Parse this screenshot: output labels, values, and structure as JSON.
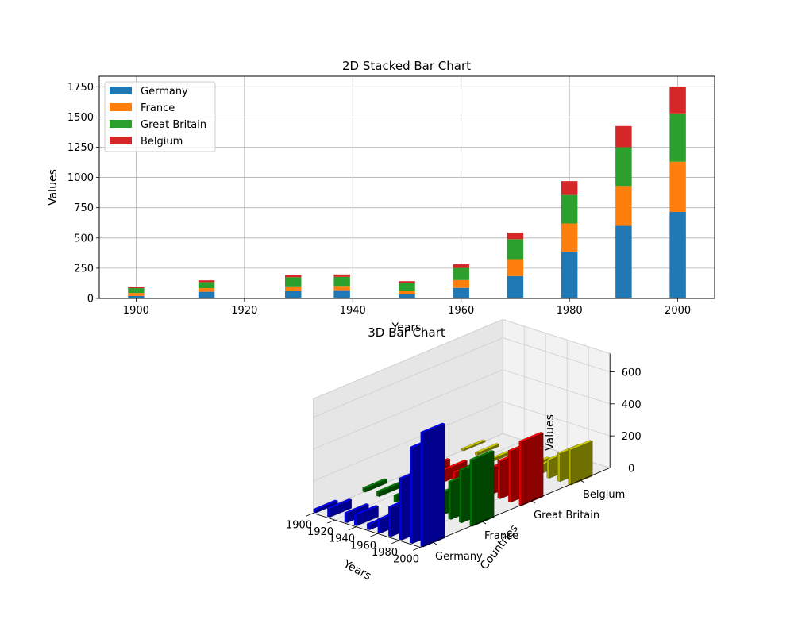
{
  "chart_data": [
    {
      "type": "bar",
      "stacked": true,
      "title": "2D Stacked Bar Chart",
      "xlabel": "Years",
      "ylabel": "Values",
      "x": [
        1900,
        1913,
        1929,
        1938,
        1950,
        1960,
        1970,
        1980,
        1990,
        2000
      ],
      "xlim": [
        1893.2,
        2006.8
      ],
      "ylim": [
        0,
        1837
      ],
      "xticks": [
        1900,
        1920,
        1940,
        1960,
        1980,
        2000
      ],
      "yticks": [
        0,
        250,
        500,
        750,
        1000,
        1250,
        1500,
        1750
      ],
      "grid": true,
      "legend_position": "upper-left",
      "series": [
        {
          "name": "Germany",
          "color": "#1f77b4",
          "values": [
            20,
            55,
            60,
            68,
            35,
            87,
            185,
            385,
            600,
            715
          ]
        },
        {
          "name": "France",
          "color": "#ff7f0e",
          "values": [
            25,
            30,
            40,
            35,
            30,
            65,
            140,
            235,
            330,
            415
          ]
        },
        {
          "name": "Great Britain",
          "color": "#2ca02c",
          "values": [
            40,
            50,
            75,
            75,
            60,
            100,
            165,
            235,
            320,
            400
          ]
        },
        {
          "name": "Belgium",
          "color": "#d62728",
          "values": [
            10,
            15,
            18,
            20,
            18,
            30,
            55,
            115,
            175,
            220
          ]
        }
      ]
    },
    {
      "type": "bar3d",
      "title": "3D Bar Chart",
      "xlabel": "Years",
      "ylabel": "Countries",
      "zlabel": "Values",
      "xticks": [
        1900,
        1920,
        1940,
        1960,
        1980,
        2000
      ],
      "yticks": [
        "Germany",
        "France",
        "Great Britain",
        "Belgium"
      ],
      "zticks": [
        0,
        200,
        400,
        600
      ],
      "zlim": [
        0,
        715
      ],
      "x": [
        1900,
        1913,
        1929,
        1938,
        1950,
        1960,
        1970,
        1980,
        1990,
        2000
      ],
      "series": [
        {
          "name": "Germany",
          "color": "#0000ff",
          "values": [
            20,
            55,
            60,
            68,
            35,
            87,
            185,
            385,
            600,
            715
          ]
        },
        {
          "name": "France",
          "color": "#008000",
          "values": [
            25,
            30,
            40,
            35,
            30,
            65,
            140,
            235,
            330,
            415
          ]
        },
        {
          "name": "Great Britain",
          "color": "#ff0000",
          "values": [
            40,
            50,
            75,
            75,
            60,
            100,
            165,
            235,
            320,
            400
          ]
        },
        {
          "name": "Belgium",
          "color": "#cccc00",
          "values": [
            10,
            15,
            18,
            20,
            18,
            30,
            55,
            115,
            175,
            220
          ]
        }
      ]
    }
  ]
}
